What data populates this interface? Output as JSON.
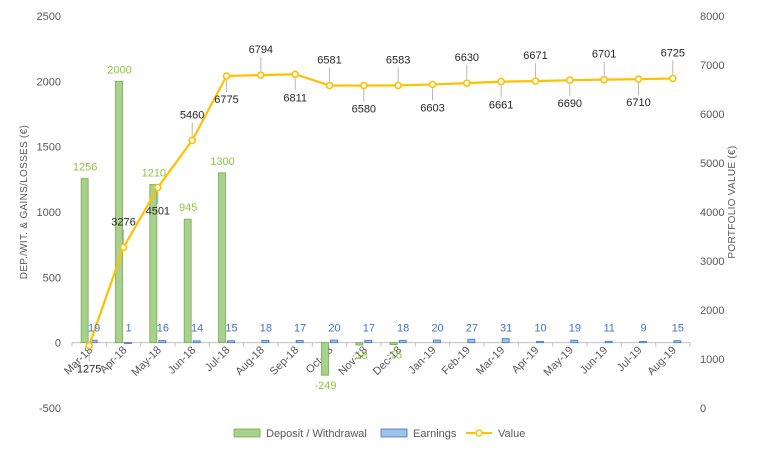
{
  "chart_data": {
    "type": "bar",
    "categories": [
      "Mar-18",
      "Apr-18",
      "May-18",
      "Jun-18",
      "Jul-18",
      "Aug-18",
      "Sep-18",
      "Oct-18",
      "Nov-18",
      "Dec-18",
      "Jan-19",
      "Feb-19",
      "Mar-19",
      "Apr-19",
      "May-19",
      "Jun-19",
      "Jul-19",
      "Aug-19"
    ],
    "series": [
      {
        "name": "Deposit / Withdrawal",
        "type": "bar",
        "axis": "left",
        "values": [
          1256,
          2000,
          1210,
          945,
          1300,
          0,
          0,
          -249,
          -18,
          -15,
          0,
          0,
          0,
          0,
          0,
          0,
          0,
          0
        ],
        "labels": [
          "1256",
          "2000",
          "1210",
          "945",
          "1300",
          "",
          "",
          "-249",
          "-18",
          "-15",
          "",
          "",
          "",
          "",
          "",
          "",
          "",
          ""
        ]
      },
      {
        "name": "Earnings",
        "type": "bar",
        "axis": "left",
        "values": [
          19,
          1,
          16,
          14,
          15,
          18,
          17,
          20,
          17,
          18,
          20,
          27,
          31,
          10,
          19,
          11,
          9,
          15
        ],
        "labels": [
          "19",
          "1",
          "16",
          "14",
          "15",
          "18",
          "17",
          "20",
          "17",
          "18",
          "20",
          "27",
          "31",
          "10",
          "19",
          "11",
          "9",
          "15"
        ]
      },
      {
        "name": "Value",
        "type": "line",
        "axis": "right",
        "values": [
          1275,
          3276,
          4501,
          5460,
          6775,
          6794,
          6811,
          6581,
          6580,
          6583,
          6603,
          6630,
          6661,
          6671,
          6690,
          6701,
          6710,
          6725
        ],
        "labels": [
          "1275",
          "3276",
          "4501",
          "5460",
          "6775",
          "6794",
          "6811",
          "6581",
          "6580",
          "6583",
          "6603",
          "6630",
          "6661",
          "6671",
          "6690",
          "6701",
          "6710",
          "6725"
        ]
      }
    ],
    "ylabel": "DEP./WIT. & GAINS/LOSSES (€)",
    "y2label": "PORTFOLIO VALUE (€)",
    "ylim": [
      -500,
      2500
    ],
    "y2lim": [
      0,
      8000
    ],
    "yticks": [
      "2500",
      "2000",
      "1500",
      "1000",
      "500",
      "0",
      "-500"
    ],
    "y2ticks": [
      "8000",
      "7000",
      "6000",
      "5000",
      "4000",
      "3000",
      "2000",
      "1000",
      "0"
    ],
    "legend_position": "bottom",
    "grid": false,
    "colors": {
      "deposit_fill": "#a9d18e",
      "deposit_stroke": "#70ad47",
      "earnings_fill": "#9dc3e6",
      "earnings_stroke": "#4472c4",
      "line": "#ffc000",
      "axis": "#bfbfbf"
    }
  }
}
